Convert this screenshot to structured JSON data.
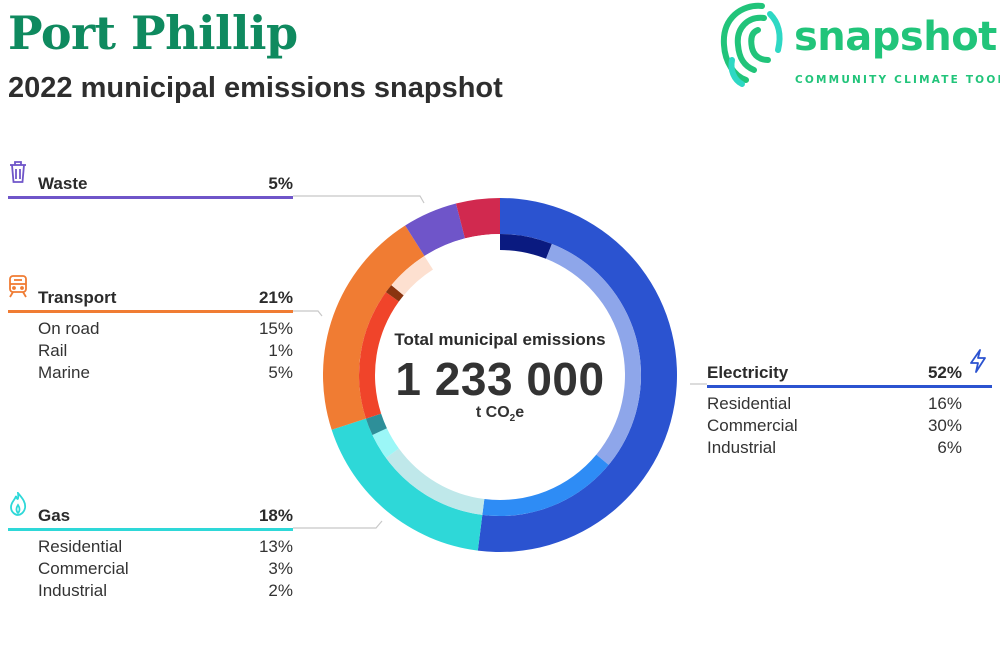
{
  "header": {
    "title": "Port Phillip",
    "subtitle": "2022 municipal emissions snapshot"
  },
  "logo": {
    "word": "snapshot",
    "tagline": "COMMUNITY CLIMATE TOOL",
    "color": "#21c47a"
  },
  "center": {
    "label": "Total municipal emissions",
    "value": "1 233 000",
    "unit_main": "t CO",
    "unit_sub": "2",
    "unit_tail": "e"
  },
  "legend": {
    "waste": {
      "name": "Waste",
      "pct": "5%",
      "color": "#6f55c9",
      "icon": "trash-icon"
    },
    "transport": {
      "name": "Transport",
      "pct": "21%",
      "color": "#f07c33",
      "icon": "train-icon",
      "items": [
        {
          "label": "On road",
          "value": "15%"
        },
        {
          "label": "Rail",
          "value": "1%"
        },
        {
          "label": "Marine",
          "value": "5%"
        }
      ]
    },
    "gas": {
      "name": "Gas",
      "pct": "18%",
      "color": "#2ed8d8",
      "icon": "flame-icon",
      "items": [
        {
          "label": "Residential",
          "value": "13%"
        },
        {
          "label": "Commercial",
          "value": "3%"
        },
        {
          "label": "Industrial",
          "value": "2%"
        }
      ]
    },
    "electricity": {
      "name": "Electricity",
      "pct": "52%",
      "color": "#2b53d0",
      "icon": "lightning-icon",
      "items": [
        {
          "label": "Residential",
          "value": "16%"
        },
        {
          "label": "Commercial",
          "value": "30%"
        },
        {
          "label": "Industrial",
          "value": "6%"
        }
      ]
    }
  },
  "chart_data": {
    "type": "pie",
    "variant": "donut",
    "outer_ring": [
      {
        "name": "Electricity",
        "value": 52,
        "color": "#2b53d0"
      },
      {
        "name": "Gas",
        "value": 18,
        "color": "#2ed8d8"
      },
      {
        "name": "Transport",
        "value": 21,
        "color": "#f07c33"
      },
      {
        "name": "Waste",
        "value": 5,
        "color": "#6f55c9"
      },
      {
        "name": "",
        "value": 4,
        "color": "#d1294f"
      }
    ],
    "inner_ring": [
      {
        "parent": "Electricity",
        "name": "Industrial",
        "value": 6,
        "color": "#0a1a80"
      },
      {
        "parent": "Electricity",
        "name": "Commercial",
        "value": 30,
        "color": "#8ea6ea"
      },
      {
        "parent": "Electricity",
        "name": "Residential",
        "value": 16,
        "color": "#2e8cf5"
      },
      {
        "parent": "Gas",
        "name": "Residential",
        "value": 13,
        "color": "#bfe8ea"
      },
      {
        "parent": "Gas",
        "name": "Commercial",
        "value": 3,
        "color": "#9bf7f7"
      },
      {
        "parent": "Gas",
        "name": "Industrial",
        "value": 2,
        "color": "#2e8f99"
      },
      {
        "parent": "Transport",
        "name": "On road",
        "value": 15,
        "color": "#f0442a"
      },
      {
        "parent": "Transport",
        "name": "Rail",
        "value": 1,
        "color": "#8a3510"
      },
      {
        "parent": "Transport",
        "name": "Marine",
        "value": 5,
        "color": "#fde0d0"
      },
      {
        "parent": "Waste",
        "name": "",
        "value": 5,
        "color": "#ffffff"
      },
      {
        "parent": "",
        "name": "",
        "value": 4,
        "color": "#ffffff"
      }
    ]
  }
}
